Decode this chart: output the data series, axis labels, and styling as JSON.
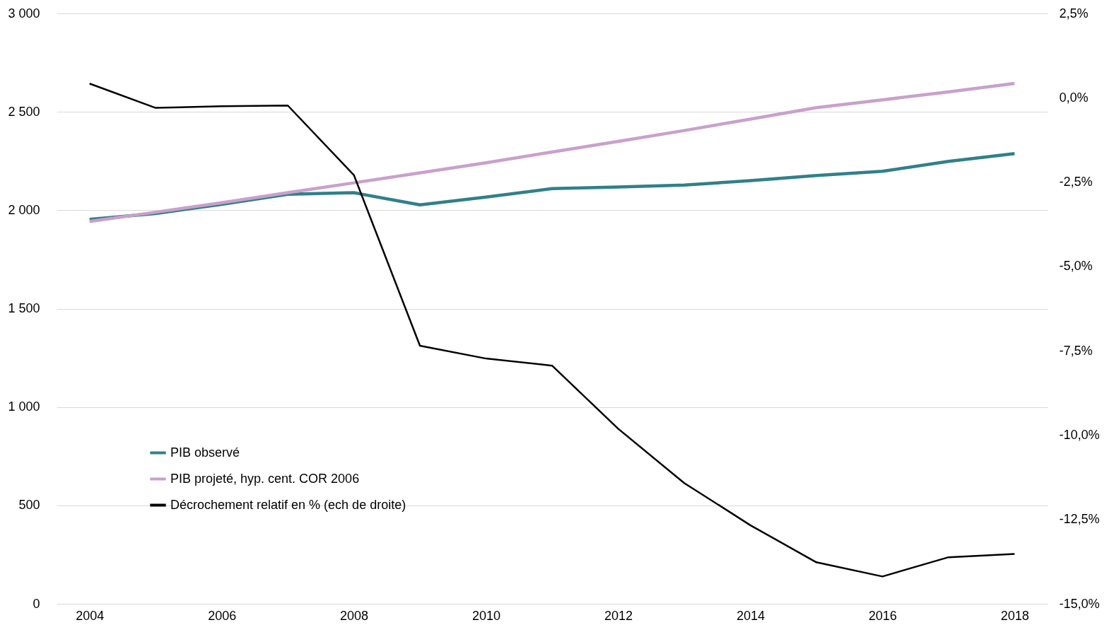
{
  "chart_data": {
    "type": "line",
    "x": [
      2004,
      2005,
      2006,
      2007,
      2008,
      2009,
      2010,
      2011,
      2012,
      2013,
      2014,
      2015,
      2016,
      2017,
      2018
    ],
    "series": [
      {
        "name": "PIB observé",
        "color": "#31808a",
        "values": [
          1954,
          1983,
          2030,
          2081,
          2089,
          2027,
          2067,
          2110,
          2118,
          2128,
          2150,
          2176,
          2198,
          2248,
          2288
        ]
      },
      {
        "name": "PIB projeté, hyp. cent. COR 2006",
        "color": "#c9a0cc",
        "values": [
          1943,
          1990,
          2038,
          2089,
          2139,
          2190,
          2241,
          2296,
          2350,
          2405,
          2463,
          2521,
          2561,
          2601,
          2644
        ]
      },
      {
        "name": "Décrochement relatif en % (ech de droite)",
        "color": "#000000",
        "axis": "y2",
        "values": [
          0.42,
          -0.3,
          -0.25,
          -0.23,
          -2.29,
          -7.35,
          -7.73,
          -7.94,
          -9.81,
          -11.42,
          -12.67,
          -13.77,
          -14.19,
          -13.62,
          -13.52
        ]
      }
    ],
    "xlim": [
      2003.5,
      2018.5
    ],
    "xticks": [
      2004,
      2006,
      2008,
      2010,
      2012,
      2014,
      2016,
      2018
    ],
    "ylim": [
      0,
      3000
    ],
    "yticks": [
      {
        "value": 0,
        "label": "0"
      },
      {
        "value": 500,
        "label": "500"
      },
      {
        "value": 1000,
        "label": "1 000"
      },
      {
        "value": 1500,
        "label": "1 500"
      },
      {
        "value": 2000,
        "label": "2 000"
      },
      {
        "value": 2500,
        "label": "2 500"
      },
      {
        "value": 3000,
        "label": "3 000"
      }
    ],
    "y2lim": [
      -15,
      2.5
    ],
    "y2ticks": [
      {
        "value": -15,
        "label": "-15,0%"
      },
      {
        "value": -12.5,
        "label": "-12,5%"
      },
      {
        "value": -10,
        "label": "-10,0%"
      },
      {
        "value": -7.5,
        "label": "-7,5%"
      },
      {
        "value": -5,
        "label": "-5,0%"
      },
      {
        "value": -2.5,
        "label": "-2,5%"
      },
      {
        "value": 0,
        "label": "0,0%"
      },
      {
        "value": 2.5,
        "label": "2,5%"
      }
    ],
    "grid": "y",
    "legend": "bottom left"
  }
}
